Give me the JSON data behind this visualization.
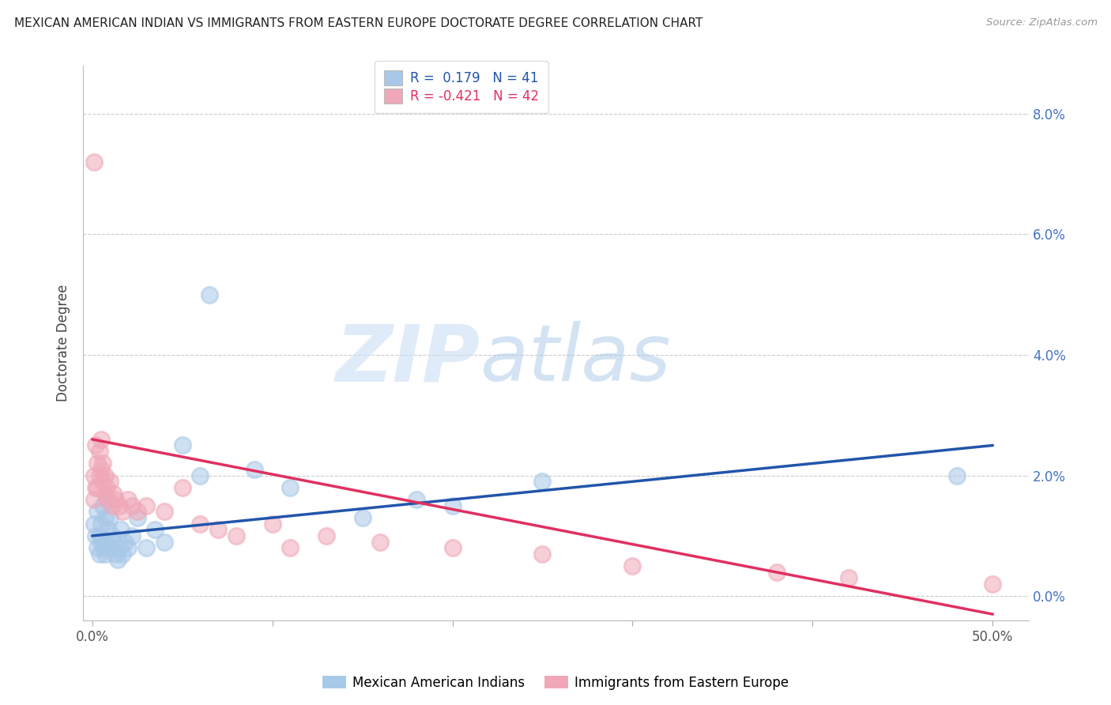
{
  "title": "MEXICAN AMERICAN INDIAN VS IMMIGRANTS FROM EASTERN EUROPE DOCTORATE DEGREE CORRELATION CHART",
  "source": "Source: ZipAtlas.com",
  "ylabel": "Doctorate Degree",
  "y_right_labels": [
    "0.0%",
    "2.0%",
    "4.0%",
    "6.0%",
    "8.0%"
  ],
  "x_labels": [
    "0.0%",
    "",
    "",
    "",
    "",
    "50.0%"
  ],
  "legend1_label": "R =  0.179   N = 41",
  "legend2_label": "R = -0.421   N = 42",
  "color_blue": "#a8c8e8",
  "color_pink": "#f0a8b8",
  "line_blue": "#2255aa",
  "line_pink": "#e03060",
  "series1_name": "Mexican American Indians",
  "series2_name": "Immigrants from Eastern Europe",
  "blue_x": [
    0.001,
    0.002,
    0.003,
    0.003,
    0.004,
    0.004,
    0.005,
    0.005,
    0.006,
    0.006,
    0.007,
    0.007,
    0.008,
    0.008,
    0.009,
    0.009,
    0.01,
    0.011,
    0.012,
    0.013,
    0.014,
    0.015,
    0.016,
    0.017,
    0.018,
    0.02,
    0.022,
    0.025,
    0.03,
    0.035,
    0.04,
    0.05,
    0.065,
    0.11,
    0.15,
    0.2,
    0.25,
    0.48,
    0.09,
    0.18,
    0.06
  ],
  "blue_y": [
    0.012,
    0.01,
    0.008,
    0.014,
    0.007,
    0.01,
    0.012,
    0.009,
    0.015,
    0.008,
    0.013,
    0.007,
    0.009,
    0.016,
    0.011,
    0.008,
    0.013,
    0.01,
    0.009,
    0.007,
    0.006,
    0.008,
    0.011,
    0.007,
    0.009,
    0.008,
    0.01,
    0.013,
    0.008,
    0.011,
    0.009,
    0.025,
    0.05,
    0.018,
    0.013,
    0.015,
    0.019,
    0.02,
    0.021,
    0.016,
    0.02
  ],
  "pink_x": [
    0.001,
    0.001,
    0.002,
    0.002,
    0.003,
    0.003,
    0.004,
    0.004,
    0.005,
    0.005,
    0.006,
    0.006,
    0.007,
    0.007,
    0.008,
    0.009,
    0.01,
    0.011,
    0.012,
    0.013,
    0.015,
    0.017,
    0.02,
    0.022,
    0.025,
    0.03,
    0.04,
    0.05,
    0.06,
    0.08,
    0.1,
    0.13,
    0.16,
    0.2,
    0.25,
    0.3,
    0.38,
    0.42,
    0.5,
    0.11,
    0.07,
    0.001
  ],
  "pink_y": [
    0.02,
    0.016,
    0.025,
    0.018,
    0.022,
    0.018,
    0.02,
    0.024,
    0.026,
    0.021,
    0.022,
    0.019,
    0.02,
    0.017,
    0.018,
    0.016,
    0.019,
    0.015,
    0.017,
    0.016,
    0.015,
    0.014,
    0.016,
    0.015,
    0.014,
    0.015,
    0.014,
    0.018,
    0.012,
    0.01,
    0.012,
    0.01,
    0.009,
    0.008,
    0.007,
    0.005,
    0.004,
    0.003,
    0.002,
    0.008,
    0.011,
    0.072
  ],
  "blue_line_x": [
    0.0,
    0.5
  ],
  "blue_line_y": [
    0.01,
    0.025
  ],
  "pink_line_x": [
    0.0,
    0.5
  ],
  "pink_line_y": [
    0.026,
    -0.003
  ],
  "xlim": [
    -0.005,
    0.52
  ],
  "ylim": [
    -0.004,
    0.088
  ],
  "ytick_vals": [
    0.0,
    0.02,
    0.04,
    0.06,
    0.08
  ],
  "xtick_vals": [
    0.0,
    0.1,
    0.2,
    0.3,
    0.4,
    0.5
  ]
}
